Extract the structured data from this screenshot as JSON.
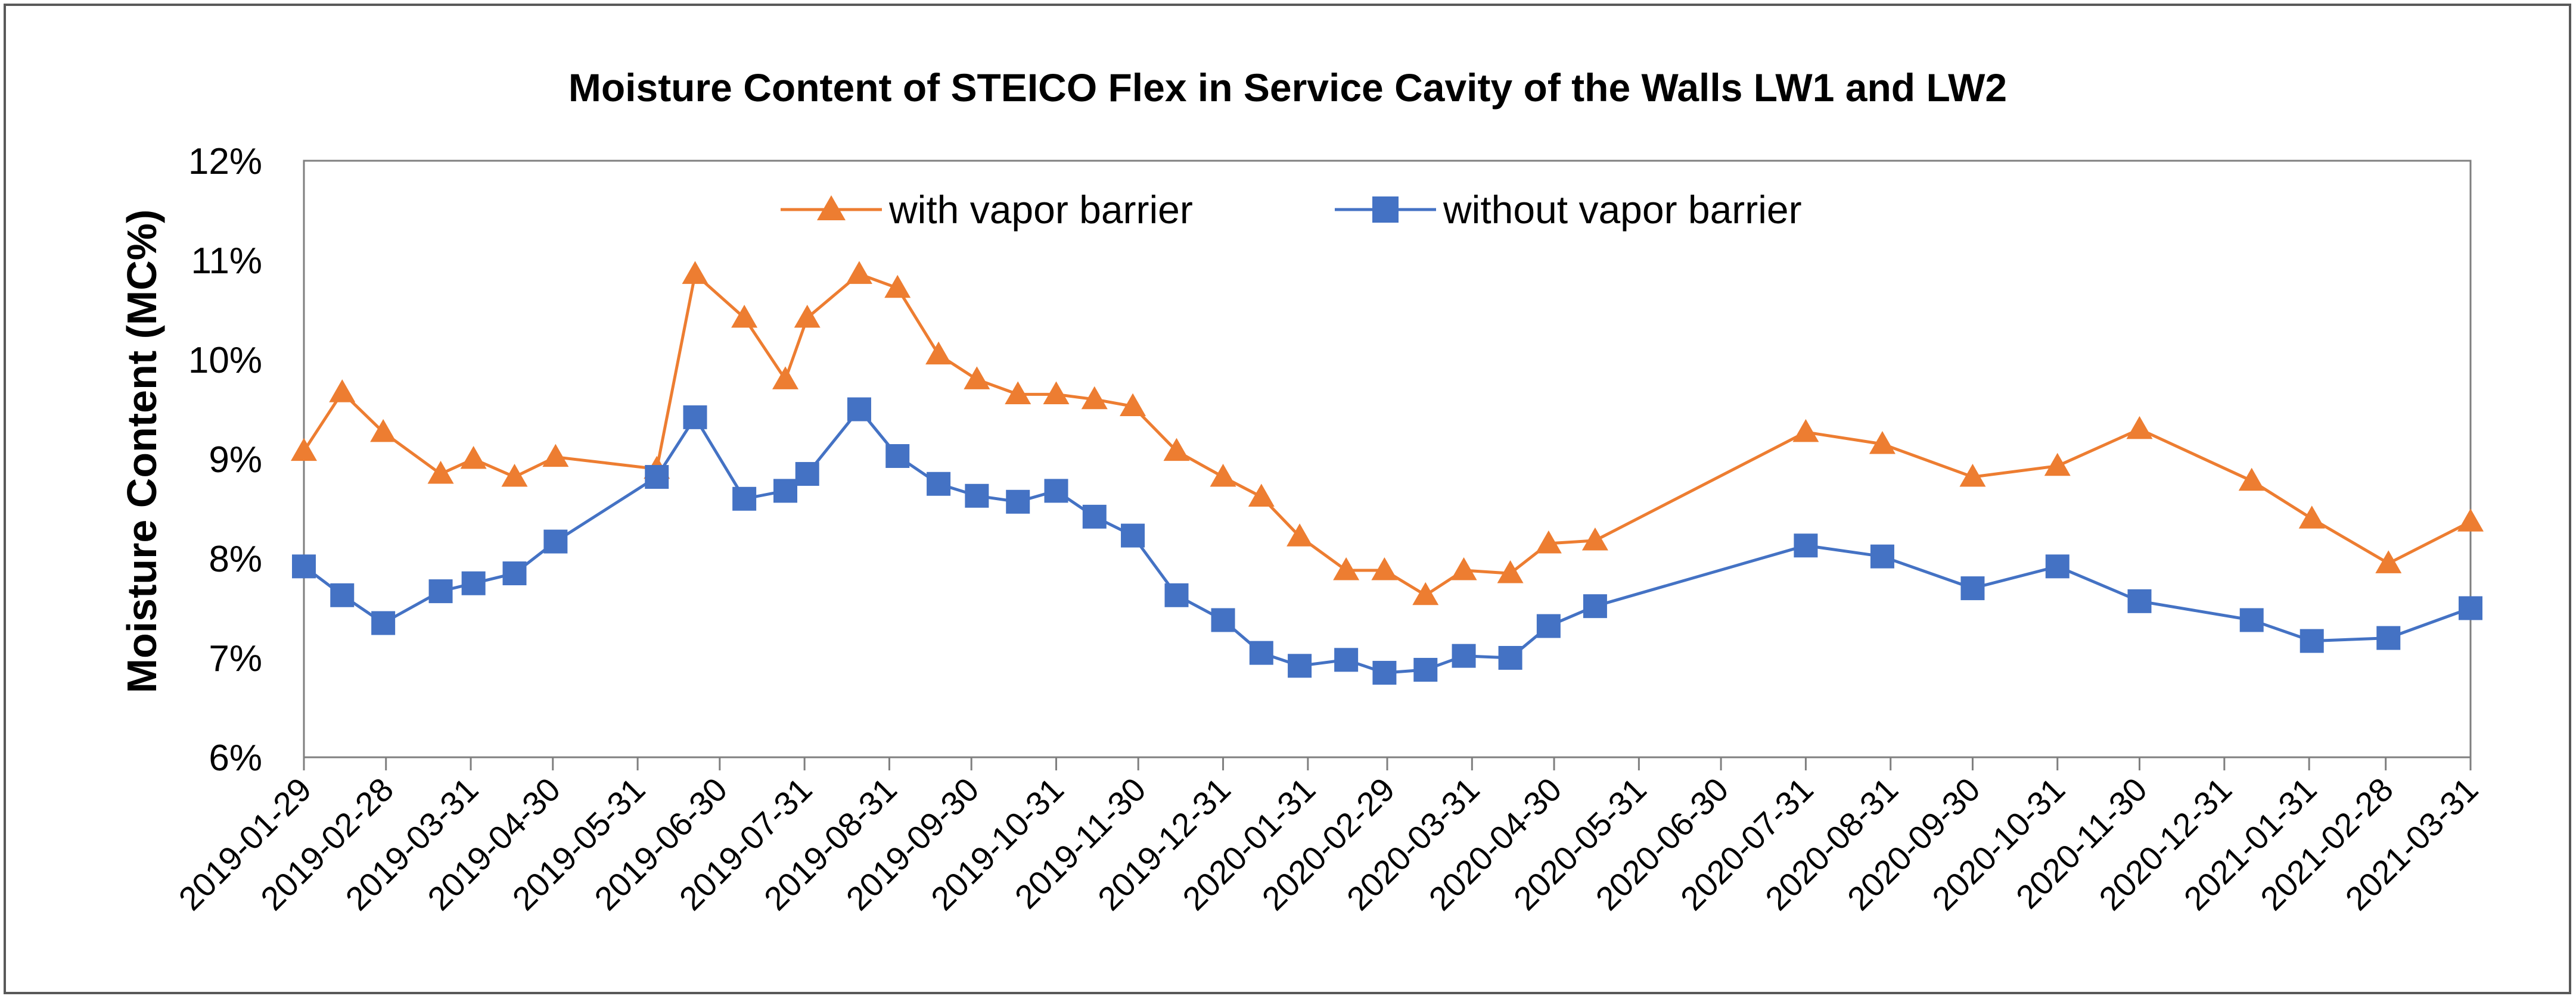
{
  "chart_data": {
    "type": "line",
    "title": "Moisture Content of STEICO Flex in Service Cavity of the Walls LW1 and LW2",
    "xlabel": "",
    "ylabel": "Moisture Content (MC%)",
    "ylim": [
      6,
      12
    ],
    "yticks": [
      "6%",
      "7%",
      "8%",
      "9%",
      "10%",
      "11%",
      "12%"
    ],
    "y_tick_values": [
      6,
      7,
      8,
      9,
      10,
      11,
      12
    ],
    "x_axis": "date",
    "xlim": [
      "2019-01-29",
      "2021-03-31"
    ],
    "xticks": [
      "2019-01-29",
      "2019-02-28",
      "2019-03-31",
      "2019-04-30",
      "2019-05-31",
      "2019-06-30",
      "2019-07-31",
      "2019-08-31",
      "2019-09-30",
      "2019-10-31",
      "2019-11-30",
      "2019-12-31",
      "2020-01-31",
      "2020-02-29",
      "2020-03-31",
      "2020-04-30",
      "2020-05-31",
      "2020-06-30",
      "2020-07-31",
      "2020-08-31",
      "2020-09-30",
      "2020-10-31",
      "2020-11-30",
      "2020-12-31",
      "2021-01-31",
      "2021-02-28",
      "2021-03-31"
    ],
    "grid": false,
    "legend_position": "top-center",
    "series": [
      {
        "name": "with vapor barrier",
        "color": "#ED7D31",
        "marker": "triangle",
        "x": [
          "2019-01-29",
          "2019-02-12",
          "2019-02-27",
          "2019-03-20",
          "2019-04-01",
          "2019-04-16",
          "2019-05-01",
          "2019-06-07",
          "2019-06-21",
          "2019-07-09",
          "2019-07-24",
          "2019-08-01",
          "2019-08-20",
          "2019-09-03",
          "2019-09-18",
          "2019-10-02",
          "2019-10-17",
          "2019-10-31",
          "2019-11-14",
          "2019-11-28",
          "2019-12-14",
          "2019-12-31",
          "2020-01-14",
          "2020-01-28",
          "2020-02-14",
          "2020-02-28",
          "2020-03-14",
          "2020-03-28",
          "2020-04-14",
          "2020-04-28",
          "2020-05-15",
          "2020-07-31",
          "2020-08-28",
          "2020-09-30",
          "2020-10-31",
          "2020-11-30",
          "2021-01-10",
          "2021-02-01",
          "2021-03-01",
          "2021-03-31"
        ],
        "values": [
          9.08,
          9.67,
          9.27,
          8.85,
          9.0,
          8.82,
          9.02,
          8.9,
          10.86,
          10.42,
          9.8,
          10.42,
          10.86,
          10.72,
          10.05,
          9.8,
          9.65,
          9.65,
          9.6,
          9.53,
          9.08,
          8.82,
          8.62,
          8.22,
          7.88,
          7.88,
          7.63,
          7.88,
          7.85,
          8.15,
          8.18,
          9.27,
          9.15,
          8.82,
          8.93,
          9.3,
          8.78,
          8.4,
          7.95,
          8.37
        ]
      },
      {
        "name": "without vapor barrier",
        "color": "#4472C4",
        "marker": "square",
        "x": [
          "2019-01-29",
          "2019-02-12",
          "2019-02-27",
          "2019-03-20",
          "2019-04-01",
          "2019-04-16",
          "2019-05-01",
          "2019-06-07",
          "2019-06-21",
          "2019-07-09",
          "2019-07-24",
          "2019-08-01",
          "2019-08-20",
          "2019-09-03",
          "2019-09-18",
          "2019-10-02",
          "2019-10-17",
          "2019-10-31",
          "2019-11-14",
          "2019-11-28",
          "2019-12-14",
          "2019-12-31",
          "2020-01-14",
          "2020-01-28",
          "2020-02-14",
          "2020-02-28",
          "2020-03-14",
          "2020-03-28",
          "2020-04-14",
          "2020-04-28",
          "2020-05-15",
          "2020-07-31",
          "2020-08-28",
          "2020-09-30",
          "2020-10-31",
          "2020-11-30",
          "2021-01-10",
          "2021-02-01",
          "2021-03-01",
          "2021-03-31"
        ],
        "values": [
          7.92,
          7.63,
          7.35,
          7.67,
          7.75,
          7.85,
          8.17,
          8.82,
          9.42,
          8.6,
          8.68,
          8.85,
          9.5,
          9.03,
          8.75,
          8.63,
          8.57,
          8.68,
          8.42,
          8.23,
          7.63,
          7.38,
          7.05,
          6.92,
          6.98,
          6.85,
          6.88,
          7.02,
          7.0,
          7.32,
          7.52,
          8.13,
          8.02,
          7.7,
          7.92,
          7.57,
          7.38,
          7.17,
          7.2,
          7.5
        ]
      }
    ]
  }
}
